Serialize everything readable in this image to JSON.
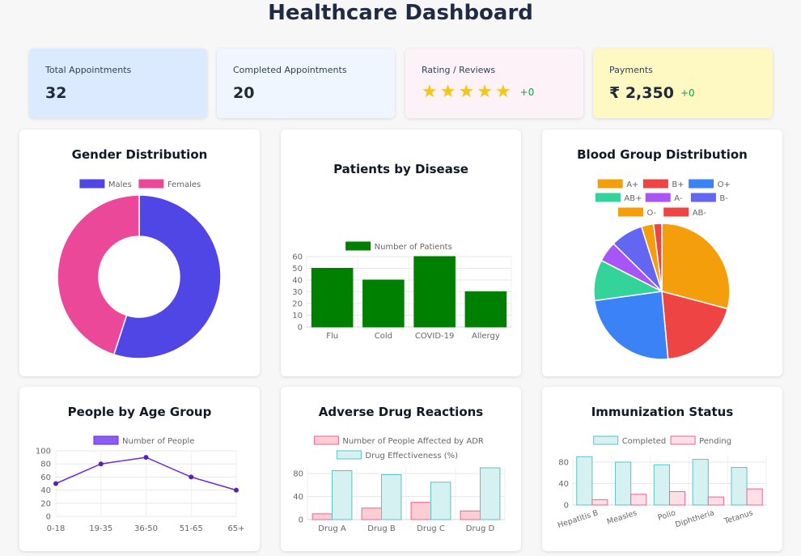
{
  "title": "Healthcare Dashboard",
  "stats": [
    {
      "label": "Total Appointments",
      "value": "32",
      "bg": "#dbeafe"
    },
    {
      "label": "Completed Appointments",
      "value": "20",
      "bg": "#eff6ff"
    },
    {
      "label": "Rating / Reviews",
      "stars": 5,
      "delta": "+0",
      "bg": "#fdf2f8"
    },
    {
      "label": "Payments",
      "value": "₹ 2,350",
      "delta": "+0",
      "bg": "#fef9c3"
    }
  ],
  "colors": {
    "star": "#f5c518",
    "delta": "#16a34a"
  },
  "chart_data": [
    {
      "type": "pie",
      "variant": "doughnut",
      "title": "Gender Distribution",
      "categories": [
        "Males",
        "Females"
      ],
      "values": [
        55,
        45
      ],
      "colors": [
        "#4f46e5",
        "#ec4899"
      ],
      "legend": "top"
    },
    {
      "type": "bar",
      "title": "Patients by Disease",
      "categories": [
        "Flu",
        "Cold",
        "COVID-19",
        "Allergy"
      ],
      "series": [
        {
          "name": "Number of Patients",
          "values": [
            50,
            40,
            60,
            30
          ],
          "color": "#008000"
        }
      ],
      "ylim": [
        0,
        60
      ],
      "yticks": [
        0,
        10,
        20,
        30,
        40,
        50,
        60
      ],
      "legend": "top",
      "grid": true
    },
    {
      "type": "pie",
      "title": "Blood Group Distribution",
      "categories": [
        "A+",
        "B+",
        "O+",
        "AB+",
        "A-",
        "B-",
        "O-",
        "AB-"
      ],
      "values": [
        30,
        20,
        25,
        10,
        5,
        8,
        3,
        2
      ],
      "colors": [
        "#f59e0b",
        "#ef4444",
        "#3b82f6",
        "#34d399",
        "#a855f7",
        "#6366f1",
        "#f59e0b",
        "#ef4444"
      ],
      "legend": "top"
    },
    {
      "type": "line",
      "title": "People by Age Group",
      "categories": [
        "0-18",
        "19-35",
        "36-50",
        "51-65",
        "65+"
      ],
      "series": [
        {
          "name": "Number of People",
          "values": [
            50,
            80,
            90,
            60,
            40
          ],
          "color": "#6d28d9"
        }
      ],
      "ylim": [
        0,
        100
      ],
      "yticks": [
        0,
        20,
        40,
        60,
        80,
        100
      ],
      "legend": "top",
      "grid": true
    },
    {
      "type": "bar",
      "title": "Adverse Drug Reactions",
      "categories": [
        "Drug A",
        "Drug B",
        "Drug C",
        "Drug D"
      ],
      "series": [
        {
          "name": "Number of People Affected by ADR",
          "values": [
            10,
            20,
            30,
            15
          ],
          "color": "#fecdd3",
          "border": "#f06292"
        },
        {
          "name": "Drug Effectiveness (%)",
          "values": [
            85,
            78,
            65,
            90
          ],
          "color": "#d6f1f1",
          "border": "#5cc2c2"
        }
      ],
      "ylim": [
        0,
        90
      ],
      "yticks": [
        0,
        40,
        80
      ],
      "legend": "top",
      "grid": true
    },
    {
      "type": "bar",
      "title": "Immunization Status",
      "categories": [
        "Hepatitis B",
        "Measles",
        "Polio",
        "Diphtheria",
        "Tetanus"
      ],
      "series": [
        {
          "name": "Completed",
          "values": [
            90,
            80,
            75,
            85,
            70
          ],
          "color": "#d6f1f1",
          "border": "#5cc2c2"
        },
        {
          "name": "Pending",
          "values": [
            10,
            20,
            25,
            15,
            30
          ],
          "color": "#fde0e6",
          "border": "#f06292"
        }
      ],
      "ylim": [
        0,
        92
      ],
      "yticks": [
        0,
        40,
        80
      ],
      "legend": "top",
      "grid": true
    }
  ]
}
